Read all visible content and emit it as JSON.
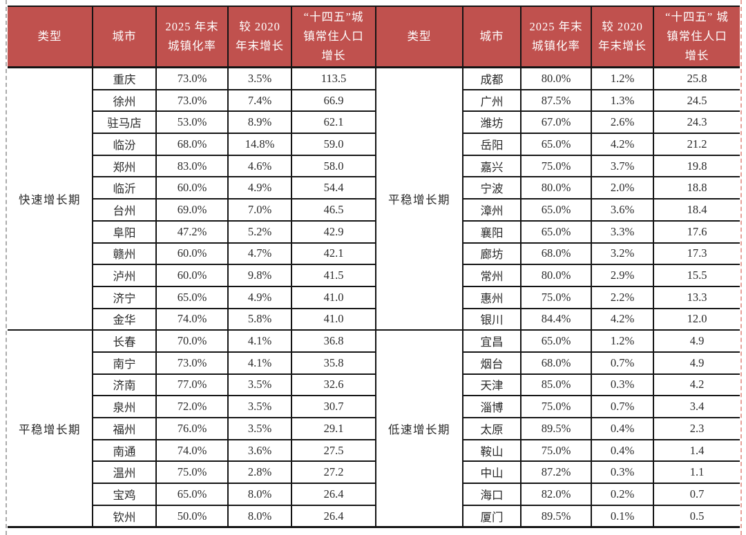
{
  "theme": {
    "header_bg": "#c0514e",
    "header_text": "#ffffff",
    "body_text": "#2a2a2a",
    "border_color": "#141414",
    "left_edge_color": "#ababab",
    "right_edge_color": "#e79e97"
  },
  "left_table": {
    "headers": {
      "type": "类型",
      "city": "城市",
      "rate": "2025 年末\n城镇化率",
      "growth": "较 2020\n年末增长",
      "pop": "“十四五”城\n镇常住人口\n增长"
    },
    "groups": [
      {
        "type": "快速增长期",
        "rows": [
          {
            "city": "重庆",
            "rate": "73.0%",
            "growth": "3.5%",
            "pop": "113.5"
          },
          {
            "city": "徐州",
            "rate": "73.0%",
            "growth": "7.4%",
            "pop": "66.9"
          },
          {
            "city": "驻马店",
            "rate": "53.0%",
            "growth": "8.9%",
            "pop": "62.1"
          },
          {
            "city": "临汾",
            "rate": "68.0%",
            "growth": "14.8%",
            "pop": "59.0"
          },
          {
            "city": "郑州",
            "rate": "83.0%",
            "growth": "4.6%",
            "pop": "58.0"
          },
          {
            "city": "临沂",
            "rate": "60.0%",
            "growth": "4.9%",
            "pop": "54.4"
          },
          {
            "city": "台州",
            "rate": "69.0%",
            "growth": "7.0%",
            "pop": "46.5"
          },
          {
            "city": "阜阳",
            "rate": "47.2%",
            "growth": "5.2%",
            "pop": "42.9"
          },
          {
            "city": "赣州",
            "rate": "60.0%",
            "growth": "4.7%",
            "pop": "42.1"
          },
          {
            "city": "泸州",
            "rate": "60.0%",
            "growth": "9.8%",
            "pop": "41.5"
          },
          {
            "city": "济宁",
            "rate": "65.0%",
            "growth": "4.9%",
            "pop": "41.0"
          },
          {
            "city": "金华",
            "rate": "74.0%",
            "growth": "5.8%",
            "pop": "41.0"
          }
        ]
      },
      {
        "type": "平稳增长期",
        "rows": [
          {
            "city": "长春",
            "rate": "70.0%",
            "growth": "4.1%",
            "pop": "36.8"
          },
          {
            "city": "南宁",
            "rate": "73.0%",
            "growth": "4.1%",
            "pop": "35.8"
          },
          {
            "city": "济南",
            "rate": "77.0%",
            "growth": "3.5%",
            "pop": "32.6"
          },
          {
            "city": "泉州",
            "rate": "72.0%",
            "growth": "3.5%",
            "pop": "30.7"
          },
          {
            "city": "福州",
            "rate": "76.0%",
            "growth": "3.5%",
            "pop": "29.1"
          },
          {
            "city": "南通",
            "rate": "74.0%",
            "growth": "3.6%",
            "pop": "27.5"
          },
          {
            "city": "温州",
            "rate": "75.0%",
            "growth": "2.8%",
            "pop": "27.2"
          },
          {
            "city": "宝鸡",
            "rate": "65.0%",
            "growth": "8.0%",
            "pop": "26.4"
          },
          {
            "city": "钦州",
            "rate": "50.0%",
            "growth": "8.0%",
            "pop": "26.4"
          }
        ]
      }
    ]
  },
  "right_table": {
    "headers": {
      "type": "类型",
      "city": "城市",
      "rate": "2025 年末\n城镇化率",
      "growth": "较 2020\n年末增长",
      "pop": "“十四五” 城\n镇常住人口\n增长"
    },
    "groups": [
      {
        "type": "平稳增长期",
        "rows": [
          {
            "city": "成都",
            "rate": "80.0%",
            "growth": "1.2%",
            "pop": "25.8"
          },
          {
            "city": "广州",
            "rate": "87.5%",
            "growth": "1.3%",
            "pop": "24.5"
          },
          {
            "city": "潍坊",
            "rate": "67.0%",
            "growth": "2.6%",
            "pop": "24.3"
          },
          {
            "city": "岳阳",
            "rate": "65.0%",
            "growth": "4.2%",
            "pop": "21.2"
          },
          {
            "city": "嘉兴",
            "rate": "75.0%",
            "growth": "3.7%",
            "pop": "19.8"
          },
          {
            "city": "宁波",
            "rate": "80.0%",
            "growth": "2.0%",
            "pop": "18.8"
          },
          {
            "city": "漳州",
            "rate": "65.0%",
            "growth": "3.6%",
            "pop": "18.4"
          },
          {
            "city": "襄阳",
            "rate": "65.0%",
            "growth": "3.3%",
            "pop": "17.6"
          },
          {
            "city": "廊坊",
            "rate": "68.0%",
            "growth": "3.2%",
            "pop": "17.3"
          },
          {
            "city": "常州",
            "rate": "80.0%",
            "growth": "2.9%",
            "pop": "15.5"
          },
          {
            "city": "惠州",
            "rate": "75.0%",
            "growth": "2.2%",
            "pop": "13.3"
          },
          {
            "city": "银川",
            "rate": "84.4%",
            "growth": "4.2%",
            "pop": "12.0"
          }
        ]
      },
      {
        "type": "低速增长期",
        "rows": [
          {
            "city": "宜昌",
            "rate": "65.0%",
            "growth": "1.2%",
            "pop": "4.9"
          },
          {
            "city": "烟台",
            "rate": "68.0%",
            "growth": "0.7%",
            "pop": "4.9"
          },
          {
            "city": "天津",
            "rate": "85.0%",
            "growth": "0.3%",
            "pop": "4.2"
          },
          {
            "city": "淄博",
            "rate": "75.0%",
            "growth": "0.7%",
            "pop": "3.4"
          },
          {
            "city": "太原",
            "rate": "89.5%",
            "growth": "0.4%",
            "pop": "2.3"
          },
          {
            "city": "鞍山",
            "rate": "75.0%",
            "growth": "0.4%",
            "pop": "1.4"
          },
          {
            "city": "中山",
            "rate": "87.2%",
            "growth": "0.3%",
            "pop": "1.1"
          },
          {
            "city": "海口",
            "rate": "82.0%",
            "growth": "0.2%",
            "pop": "0.7"
          },
          {
            "city": "厦门",
            "rate": "89.5%",
            "growth": "0.1%",
            "pop": "0.5"
          }
        ]
      }
    ]
  }
}
